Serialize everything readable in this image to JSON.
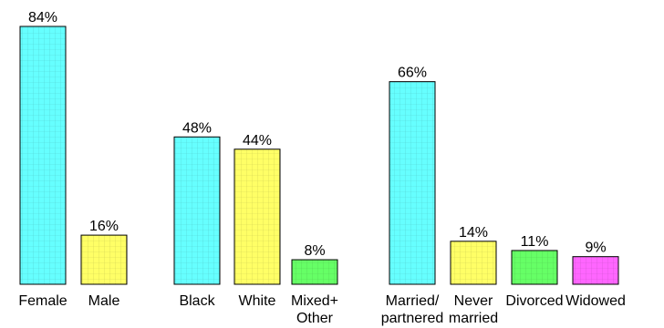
{
  "chart_data": {
    "type": "bar",
    "y_unit": "%",
    "ylim": [
      0,
      100
    ],
    "grid": false,
    "legend": "none",
    "bars": [
      {
        "category": [
          "Female"
        ],
        "value": 84,
        "label": "84%",
        "color": "#66ffff"
      },
      {
        "category": [
          "Male"
        ],
        "value": 16,
        "label": "16%",
        "color": "#ffff66"
      },
      {
        "category": [
          "Black"
        ],
        "value": 48,
        "label": "48%",
        "color": "#66ffff"
      },
      {
        "category": [
          "White"
        ],
        "value": 44,
        "label": "44%",
        "color": "#ffff66"
      },
      {
        "category": [
          "Mixed+",
          "Other"
        ],
        "value": 8,
        "label": "8%",
        "color": "#66ff66"
      },
      {
        "category": [
          "Married/",
          "partnered"
        ],
        "value": 66,
        "label": "66%",
        "color": "#66ffff"
      },
      {
        "category": [
          "Never",
          "married"
        ],
        "value": 14,
        "label": "14%",
        "color": "#ffff66"
      },
      {
        "category": [
          "Divorced"
        ],
        "value": 11,
        "label": "11%",
        "color": "#66ff66"
      },
      {
        "category": [
          "Widowed"
        ],
        "value": 9,
        "label": "9%",
        "color": "#ff66ff"
      }
    ]
  }
}
